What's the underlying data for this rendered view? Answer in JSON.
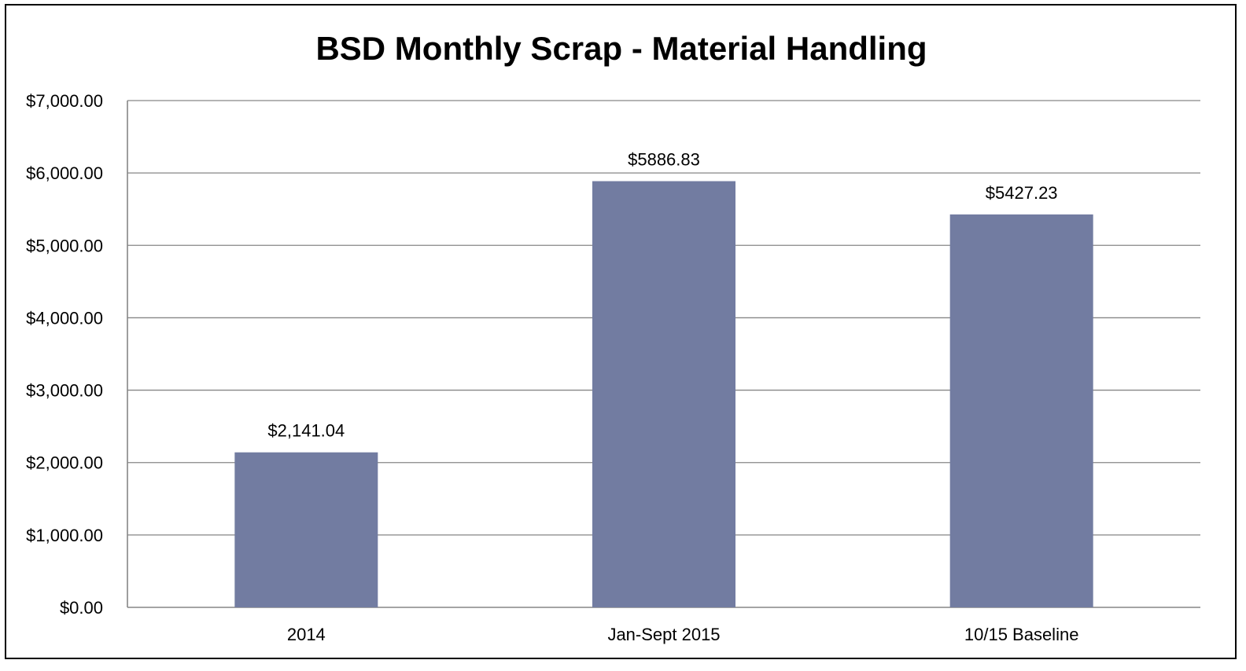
{
  "chart_data": {
    "type": "bar",
    "title": "BSD Monthly Scrap - Material Handling",
    "xlabel": "",
    "ylabel": "",
    "categories": [
      "2014",
      "Jan-Sept 2015",
      "10/15 Baseline"
    ],
    "values": [
      2141.04,
      5886.83,
      5427.23
    ],
    "data_labels": [
      "$2,141.04",
      "$5886.83",
      "$5427.23"
    ],
    "ylim": [
      0,
      7000
    ],
    "yticks": [
      0,
      1000,
      2000,
      3000,
      4000,
      5000,
      6000,
      7000
    ],
    "ytick_labels": [
      "$0.00",
      "$1,000.00",
      "$2,000.00",
      "$3,000.00",
      "$4,000.00",
      "$5,000.00",
      "$6,000.00",
      "$7,000.00"
    ],
    "grid": true,
    "legend": "none",
    "bar_color": "#727ca1",
    "grid_color": "#868686"
  }
}
